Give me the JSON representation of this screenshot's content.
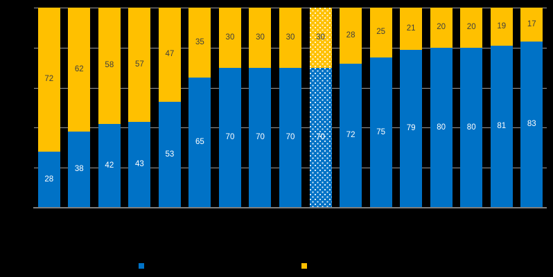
{
  "chart_data": {
    "type": "bar",
    "stacked": true,
    "n_bars": 17,
    "categories_visible": false,
    "series": [
      {
        "name": "bottom-segment-blue",
        "color": "#0072C6",
        "label_color": "#FFFFFF",
        "values": [
          28,
          38,
          42,
          43,
          53,
          65,
          70,
          70,
          70,
          70,
          72,
          75,
          79,
          80,
          80,
          81,
          83
        ]
      },
      {
        "name": "top-segment-gold",
        "color": "#FFC000",
        "label_color": "#3F3F3F",
        "values": [
          72,
          62,
          58,
          57,
          47,
          35,
          30,
          30,
          30,
          30,
          28,
          25,
          21,
          20,
          20,
          19,
          17
        ]
      }
    ],
    "dotted_bar_index": 9,
    "ylim": [
      0,
      100
    ],
    "gridline_step": 20,
    "grid": true,
    "legend_position": "bottom",
    "legend": [
      {
        "swatch_color": "#0072C6",
        "label": ""
      },
      {
        "swatch_color": "#FFC000",
        "label": ""
      }
    ]
  },
  "colors": {
    "background": "#000000",
    "gridline": "#9A9A9A",
    "axis_line": "#7F7F7F"
  }
}
